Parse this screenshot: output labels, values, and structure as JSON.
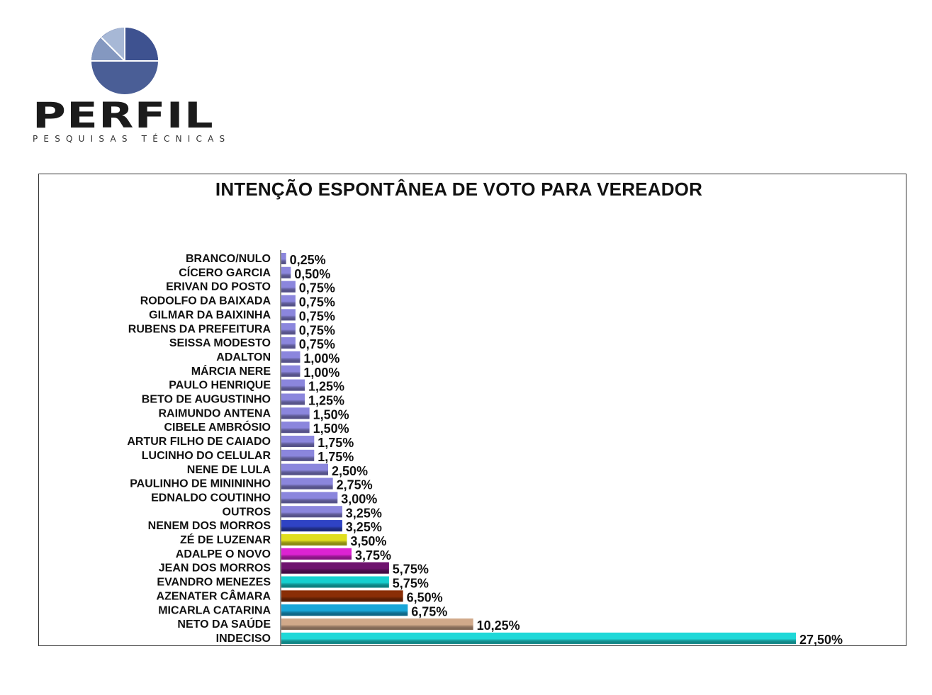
{
  "logo": {
    "word": "PERFIL",
    "tagline": "PESQUISAS TÉCNICAS",
    "colors": [
      "#4a5e96",
      "#8da1c4",
      "#a8b9d6",
      "#6a7fb0"
    ]
  },
  "chart_data": {
    "type": "bar",
    "orientation": "horizontal",
    "title": "INTENÇÃO ESPONTÂNEA DE VOTO PARA VEREADOR",
    "xlabel": "",
    "ylabel": "",
    "xlim": [
      0,
      30
    ],
    "grid": false,
    "legend": "none",
    "categories": [
      "BRANCO/NULO",
      "CÍCERO GARCIA",
      "ERIVAN DO POSTO",
      "RODOLFO DA BAIXADA",
      "GILMAR DA BAIXINHA",
      "RUBENS DA PREFEITURA",
      "SEISSA MODESTO",
      "ADALTON",
      "MÁRCIA NERE",
      "PAULO HENRIQUE",
      "BETO DE AUGUSTINHO",
      "RAIMUNDO ANTENA",
      "CIBELE AMBRÓSIO",
      "ARTUR FILHO DE CAIADO",
      "LUCINHO DO CELULAR",
      "NENE DE LULA",
      "PAULINHO DE MINININHO",
      "EDNALDO COUTINHO",
      "OUTROS",
      "NENEM DOS MORROS",
      "ZÉ DE LUZENAR",
      "ADALPE O NOVO",
      "JEAN DOS MORROS",
      "EVANDRO MENEZES",
      "AZENATER CÂMARA",
      "MICARLA CATARINA",
      "NETO DA SAÚDE",
      "INDECISO"
    ],
    "values": [
      0.25,
      0.5,
      0.75,
      0.75,
      0.75,
      0.75,
      0.75,
      1.0,
      1.0,
      1.25,
      1.25,
      1.5,
      1.5,
      1.75,
      1.75,
      2.5,
      2.75,
      3.0,
      3.25,
      3.25,
      3.5,
      3.75,
      5.75,
      5.75,
      6.5,
      6.75,
      10.25,
      27.5
    ],
    "value_labels": [
      "0,25%",
      "0,50%",
      "0,75%",
      "0,75%",
      "0,75%",
      "0,75%",
      "0,75%",
      "1,00%",
      "1,00%",
      "1,25%",
      "1,25%",
      "1,50%",
      "1,50%",
      "1,75%",
      "1,75%",
      "2,50%",
      "2,75%",
      "3,00%",
      "3,25%",
      "3,25%",
      "3,50%",
      "3,75%",
      "5,75%",
      "5,75%",
      "6,50%",
      "6,75%",
      "10,25%",
      "27,50%"
    ],
    "colors": [
      "#8b86dd",
      "#8b86dd",
      "#8b86dd",
      "#8b86dd",
      "#8b86dd",
      "#8b86dd",
      "#8b86dd",
      "#8b86dd",
      "#8b86dd",
      "#8b86dd",
      "#8b86dd",
      "#8b86dd",
      "#8b86dd",
      "#8b86dd",
      "#8b86dd",
      "#8b86dd",
      "#8b86dd",
      "#8b86dd",
      "#8b86dd",
      "#2f43c4",
      "#e0de1e",
      "#dd23d2",
      "#6e146e",
      "#16d0d0",
      "#8a2e06",
      "#19a6d8",
      "#d1a98a",
      "#1fd8d8"
    ]
  }
}
